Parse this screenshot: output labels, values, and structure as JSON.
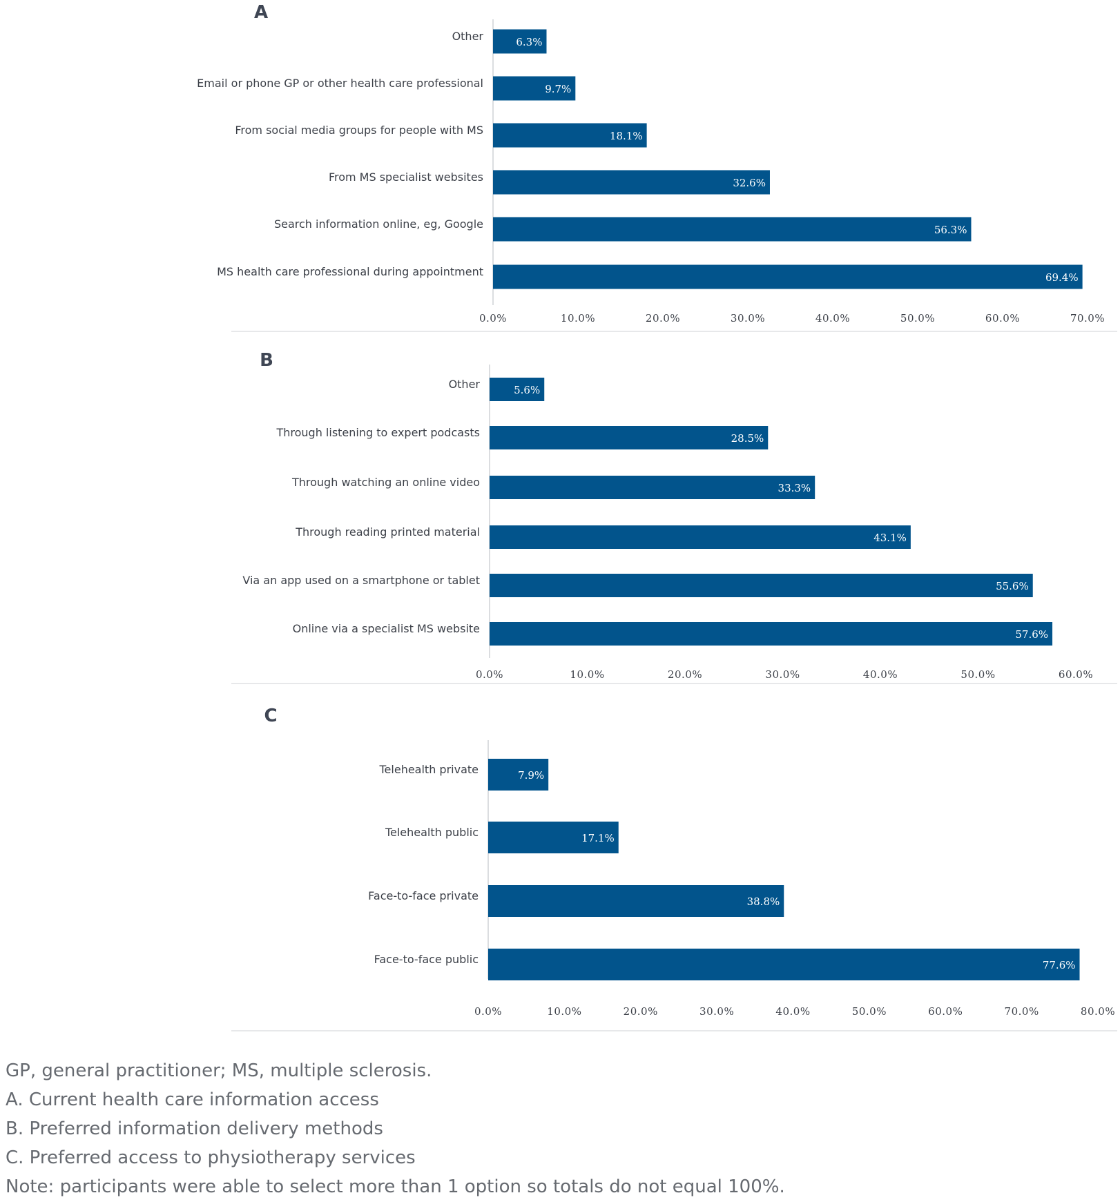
{
  "chart_data": [
    {
      "type": "bar",
      "orientation": "horizontal",
      "panel": "A",
      "categories": [
        "Other",
        "Email or phone GP or other health care professional",
        "From social media groups for people with MS",
        "From MS specialist websites",
        "Search information online, eg, Google",
        "MS health care professional during appointment"
      ],
      "values": [
        6.3,
        9.7,
        18.1,
        32.6,
        56.3,
        69.4
      ],
      "value_labels": [
        "6.3%",
        "9.7%",
        "18.1%",
        "32.6%",
        "56.3%",
        "69.4%"
      ],
      "xlim": [
        0,
        70
      ],
      "ticks": [
        0,
        10,
        20,
        30,
        40,
        50,
        60,
        70
      ],
      "tick_labels": [
        "0.0%",
        "10.0%",
        "20.0%",
        "30.0%",
        "40.0%",
        "50.0%",
        "60.0%",
        "70.0%"
      ],
      "color": "#02548c"
    },
    {
      "type": "bar",
      "orientation": "horizontal",
      "panel": "B",
      "categories": [
        "Other",
        "Through listening to expert podcasts",
        "Through watching an online video",
        "Through reading printed material",
        "Via an app used on a smartphone or tablet",
        "Online via a specialist MS website"
      ],
      "values": [
        5.6,
        28.5,
        33.3,
        43.1,
        55.6,
        57.6
      ],
      "value_labels": [
        "5.6%",
        "28.5%",
        "33.3%",
        "43.1%",
        "55.6%",
        "57.6%"
      ],
      "xlim": [
        0,
        60
      ],
      "ticks": [
        0,
        10,
        20,
        30,
        40,
        50,
        60
      ],
      "tick_labels": [
        "0.0%",
        "10.0%",
        "20.0%",
        "30.0%",
        "40.0%",
        "50.0%",
        "60.0%"
      ],
      "color": "#02548c"
    },
    {
      "type": "bar",
      "orientation": "horizontal",
      "panel": "C",
      "categories": [
        "Telehealth private",
        "Telehealth public",
        "Face-to-face private",
        "Face-to-face public"
      ],
      "values": [
        7.9,
        17.1,
        38.8,
        77.6
      ],
      "value_labels": [
        "7.9%",
        "17.1%",
        "38.8%",
        "77.6%"
      ],
      "xlim": [
        0,
        80
      ],
      "ticks": [
        0,
        10,
        20,
        30,
        40,
        50,
        60,
        70,
        80
      ],
      "tick_labels": [
        "0.0%",
        "10.0%",
        "20.0%",
        "30.0%",
        "40.0%",
        "50.0%",
        "60.0%",
        "70.0%",
        "80.0%"
      ],
      "color": "#02548c"
    }
  ],
  "notes": {
    "abbrev": "GP, general practitioner; MS, multiple sclerosis.",
    "a": "A. Current health care information access",
    "b": "B. Preferred information delivery methods",
    "c": "C. Preferred access to physiotherapy services",
    "note": "Note: participants were able to select more than 1 option so totals do not equal 100%."
  }
}
